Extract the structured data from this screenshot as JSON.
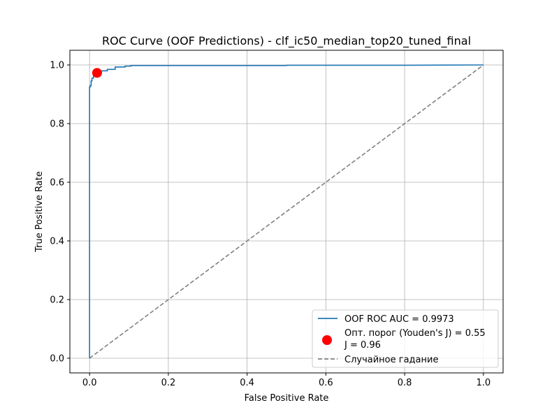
{
  "chart_data": {
    "type": "line",
    "title": "ROC Curve (OOF Predictions) - clf_ic50_median_top20_tuned_final",
    "xlabel": "False Positive Rate",
    "ylabel": "True Positive Rate",
    "xlim": [
      -0.05,
      1.05
    ],
    "ylim": [
      -0.05,
      1.05
    ],
    "xticks": [
      0.0,
      0.2,
      0.4,
      0.6,
      0.8,
      1.0
    ],
    "yticks": [
      0.0,
      0.2,
      0.4,
      0.6,
      0.8,
      1.0
    ],
    "xtick_labels": [
      "0.0",
      "0.2",
      "0.4",
      "0.6",
      "0.8",
      "1.0"
    ],
    "ytick_labels": [
      "0.0",
      "0.2",
      "0.4",
      "0.6",
      "0.8",
      "1.0"
    ],
    "grid": true,
    "legend_position": "lower-right",
    "series": [
      {
        "name": "OOF ROC AUC = 0.9973",
        "kind": "line",
        "color": "#1f77b4",
        "x": [
          0.0,
          0.0,
          0.0,
          0.002,
          0.002,
          0.004,
          0.004,
          0.006,
          0.006,
          0.01,
          0.01,
          0.02,
          0.02,
          0.03,
          0.03,
          0.045,
          0.045,
          0.065,
          0.065,
          0.09,
          0.09,
          0.105,
          0.105,
          0.5,
          0.5,
          0.8,
          1.0
        ],
        "y": [
          0.0,
          0.92,
          0.925,
          0.925,
          0.93,
          0.93,
          0.945,
          0.945,
          0.955,
          0.955,
          0.965,
          0.965,
          0.975,
          0.975,
          0.98,
          0.98,
          0.985,
          0.985,
          0.993,
          0.993,
          0.996,
          0.996,
          0.998,
          0.998,
          0.999,
          0.999,
          1.0
        ]
      },
      {
        "name": "Опт. порог (Youden's J) = 0.55\nJ = 0.96",
        "kind": "scatter",
        "color": "#ff0000",
        "x": [
          0.019
        ],
        "y": [
          0.973
        ]
      },
      {
        "name": "Случайное гадание",
        "kind": "dashed-line",
        "color": "#808080",
        "x": [
          0.0,
          1.0
        ],
        "y": [
          0.0,
          1.0
        ]
      }
    ],
    "legend": {
      "line1": "OOF ROC AUC = 0.9973",
      "line2a": "Опт. порог (Youden's J) = 0.55",
      "line2b": "J = 0.96",
      "line3": "Случайное гадание"
    }
  }
}
